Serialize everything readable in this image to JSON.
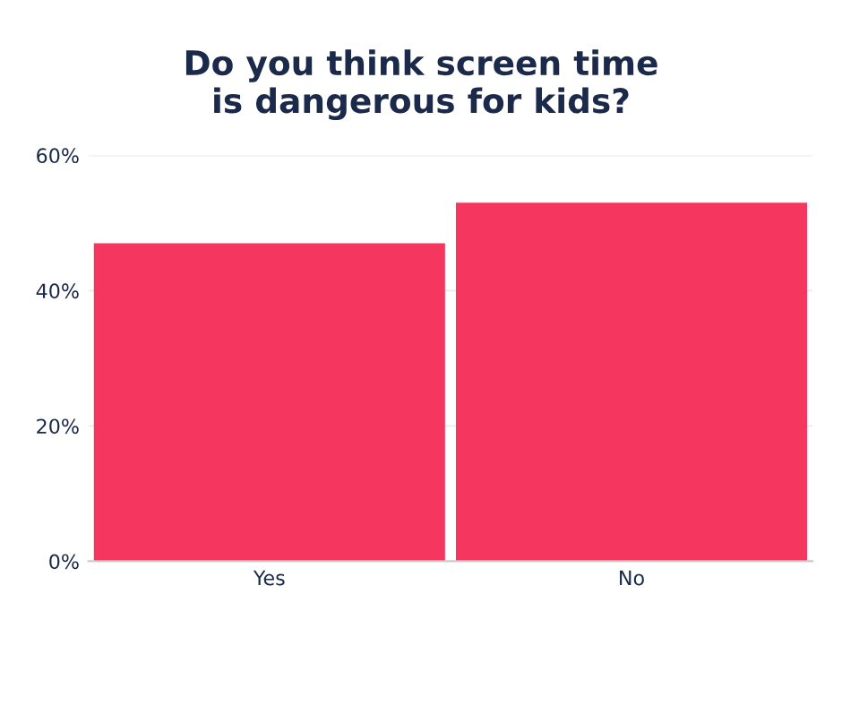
{
  "chart_data": {
    "type": "bar",
    "title": "Do you think screen time\nis dangerous for kids?",
    "categories": [
      "Yes",
      "No"
    ],
    "values": [
      47,
      53
    ],
    "color": "#f5365f",
    "ylim": [
      0,
      60
    ],
    "yticks": [
      {
        "value": 0,
        "label": "0%"
      },
      {
        "value": 20,
        "label": "20%"
      },
      {
        "value": 40,
        "label": "40%"
      },
      {
        "value": 60,
        "label": "60%"
      }
    ],
    "grid": "y"
  }
}
